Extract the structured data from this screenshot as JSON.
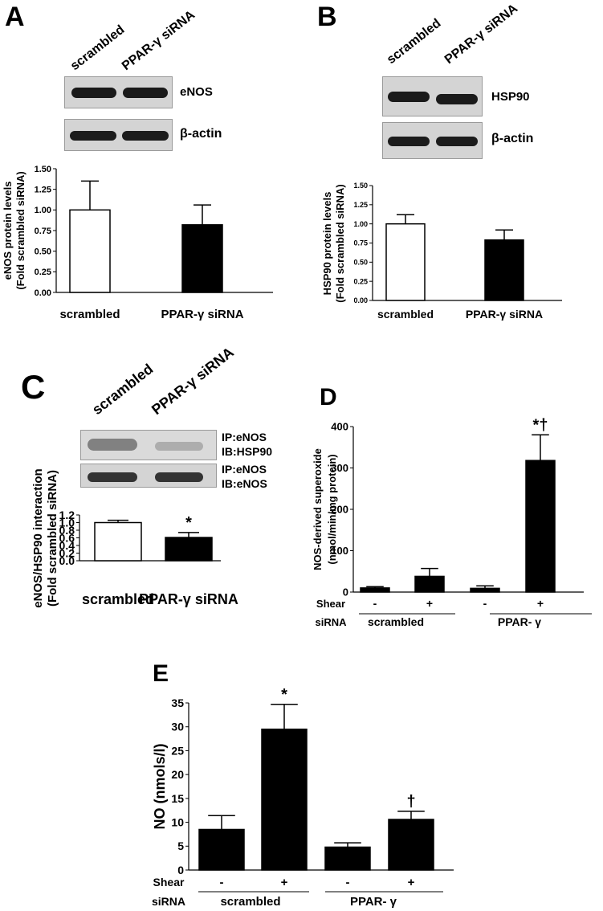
{
  "panels": {
    "A": {
      "label": "A",
      "lanes": [
        "scrambled",
        "PPAR-γ siRNA"
      ],
      "blot_labels": [
        "eNOS",
        "β-actin"
      ]
    },
    "B": {
      "label": "B",
      "lanes": [
        "scrambled",
        "PPAR-γ siRNA"
      ],
      "blot_labels": [
        "HSP90",
        "β-actin"
      ]
    },
    "C": {
      "label": "C",
      "lanes": [
        "scrambled",
        "PPAR-γ siRNA"
      ],
      "blot_labels": [
        "IP:eNOS",
        "IB:HSP90",
        "IP:eNOS",
        "IB:eNOS"
      ]
    },
    "D": {
      "label": "D"
    },
    "E": {
      "label": "E"
    }
  },
  "chart_data": [
    {
      "id": "A",
      "type": "bar",
      "categories": [
        "scrambled",
        "PPAR-γ siRNA"
      ],
      "values": [
        1.0,
        0.82
      ],
      "errors": [
        0.35,
        0.24
      ],
      "fills": [
        "#ffffff",
        "#000000"
      ],
      "ylabel": [
        "eNOS protein levels",
        "(Fold scrambled siRNA)"
      ],
      "ylim": [
        0,
        1.5
      ],
      "yticks": [
        "0.00",
        "0.25",
        "0.50",
        "0.75",
        "1.00",
        "1.25",
        "1.50"
      ],
      "annotations": [
        "",
        ""
      ]
    },
    {
      "id": "B",
      "type": "bar",
      "categories": [
        "scrambled",
        "PPAR-γ siRNA"
      ],
      "values": [
        1.0,
        0.79
      ],
      "errors": [
        0.12,
        0.13
      ],
      "fills": [
        "#ffffff",
        "#000000"
      ],
      "ylabel": [
        "HSP90 protein levels",
        "(Fold scrambled siRNA)"
      ],
      "ylim": [
        0,
        1.5
      ],
      "yticks": [
        "0.00",
        "0.25",
        "0.50",
        "0.75",
        "1.00",
        "1.25",
        "1.50"
      ],
      "annotations": [
        "",
        ""
      ]
    },
    {
      "id": "C",
      "type": "bar",
      "categories": [
        "scrambled",
        "PPAR-γ siRNA"
      ],
      "values": [
        1.0,
        0.61
      ],
      "errors": [
        0.06,
        0.13
      ],
      "fills": [
        "#ffffff",
        "#000000"
      ],
      "ylabel": [
        "eNOS/HSP90 interaction",
        "(Fold scrambled siRNA)"
      ],
      "ylim": [
        0,
        1.2
      ],
      "yticks": [
        "0.0",
        "0.2",
        "0.4",
        "0.6",
        "0.8",
        "1.0",
        "1.2"
      ],
      "annotations": [
        "",
        "*"
      ]
    },
    {
      "id": "D",
      "type": "bar",
      "categories": [
        "scrambled -",
        "scrambled +",
        "PPAR-γ -",
        "PPAR-γ +"
      ],
      "values": [
        10,
        38,
        9,
        318
      ],
      "errors": [
        3,
        19,
        6,
        62
      ],
      "fills": [
        "#000000",
        "#000000",
        "#000000",
        "#000000"
      ],
      "ylabel": [
        "NOS-derived superoxide",
        "(nmol/min/mg protein)"
      ],
      "ylim": [
        0,
        400
      ],
      "yticks": [
        "0",
        "100",
        "200",
        "300",
        "400"
      ],
      "annotations": [
        "",
        "",
        "",
        "*†"
      ],
      "row_labels": [
        "Shear",
        "siRNA"
      ],
      "shear": [
        "-",
        "+",
        "-",
        "+"
      ],
      "groups": [
        "scrambled",
        "PPAR- γ"
      ]
    },
    {
      "id": "E",
      "type": "bar",
      "categories": [
        "scrambled -",
        "scrambled +",
        "PPAR-γ -",
        "PPAR-γ +"
      ],
      "values": [
        8.5,
        29.5,
        4.8,
        10.6
      ],
      "errors": [
        2.9,
        5.2,
        0.9,
        1.7
      ],
      "fills": [
        "#000000",
        "#000000",
        "#000000",
        "#000000"
      ],
      "ylabel": [
        "NO (nmols/l)"
      ],
      "ylim": [
        0,
        35
      ],
      "yticks": [
        "0",
        "5",
        "10",
        "15",
        "20",
        "25",
        "30",
        "35"
      ],
      "annotations": [
        "",
        "*",
        "",
        "†"
      ],
      "row_labels": [
        "Shear",
        "siRNA"
      ],
      "shear": [
        "-",
        "+",
        "-",
        "+"
      ],
      "groups": [
        "scrambled",
        "PPAR- γ"
      ]
    }
  ]
}
